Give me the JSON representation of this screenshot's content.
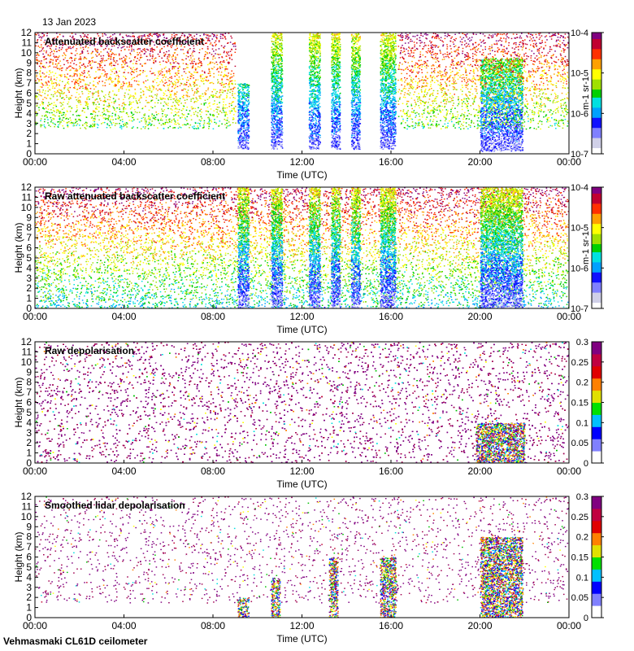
{
  "header": {
    "date": "13 Jan 2023"
  },
  "footer": {
    "site": "Vehmasmaki CL61D ceilometer"
  },
  "chart_data": [
    {
      "type": "heatmap",
      "title": "Attenuated backscatter coefficient",
      "xlabel": "Time (UTC)",
      "ylabel": "Height (km)",
      "xticks": [
        "00:00",
        "04:00",
        "08:00",
        "12:00",
        "16:00",
        "20:00",
        "00:00"
      ],
      "xlim": [
        0,
        24
      ],
      "ylim": [
        0,
        12
      ],
      "yticks": [
        0,
        1,
        2,
        3,
        4,
        5,
        6,
        7,
        8,
        9,
        10,
        11,
        12
      ],
      "colorbar": {
        "scale": "log",
        "range": [
          1e-07,
          0.0001
        ],
        "ticks": [
          "10-7",
          "10-6",
          "10-5",
          "10-4"
        ],
        "unit": "m-1 sr-1"
      },
      "features": [
        {
          "label": "noise aloft",
          "t": [
            0,
            9
          ],
          "h": [
            2.5,
            12
          ]
        },
        {
          "label": "cloud column",
          "t": [
            9.1,
            9.6
          ],
          "h": [
            0.5,
            7
          ]
        },
        {
          "label": "cloud column",
          "t": [
            10.6,
            11.1
          ],
          "h": [
            0.5,
            12
          ]
        },
        {
          "label": "cloud column",
          "t": [
            12.3,
            12.8
          ],
          "h": [
            0.5,
            12
          ]
        },
        {
          "label": "cloud column",
          "t": [
            13.3,
            13.7
          ],
          "h": [
            0.5,
            12
          ]
        },
        {
          "label": "cloud column",
          "t": [
            14.2,
            14.6
          ],
          "h": [
            0.5,
            12
          ]
        },
        {
          "label": "cloud column",
          "t": [
            15.5,
            16.2
          ],
          "h": [
            0.5,
            12
          ]
        },
        {
          "label": "precipitation / cloud",
          "t": [
            20.0,
            21.9
          ],
          "h": [
            0.3,
            9.5
          ]
        },
        {
          "label": "noise aloft",
          "t": [
            16.3,
            24
          ],
          "h": [
            2.5,
            12
          ]
        }
      ]
    },
    {
      "type": "heatmap",
      "title": "Raw attenuated backscatter coefficient",
      "xlabel": "Time (UTC)",
      "ylabel": "Height (km)",
      "xticks": [
        "00:00",
        "04:00",
        "08:00",
        "12:00",
        "16:00",
        "20:00",
        "00:00"
      ],
      "xlim": [
        0,
        24
      ],
      "ylim": [
        0,
        12
      ],
      "yticks": [
        0,
        1,
        2,
        3,
        4,
        5,
        6,
        7,
        8,
        9,
        10,
        11,
        12
      ],
      "colorbar": {
        "scale": "log",
        "range": [
          1e-07,
          0.0001
        ],
        "ticks": [
          "10-7",
          "10-6",
          "10-5",
          "10-4"
        ],
        "unit": "m-1 sr-1"
      },
      "features": [
        {
          "label": "noise field",
          "t": [
            0,
            24
          ],
          "h": [
            0,
            12
          ]
        },
        {
          "label": "cloud column",
          "t": [
            9.1,
            9.6
          ],
          "h": [
            0,
            12
          ]
        },
        {
          "label": "cloud column",
          "t": [
            10.6,
            11.1
          ],
          "h": [
            0,
            12
          ]
        },
        {
          "label": "cloud column",
          "t": [
            12.3,
            12.8
          ],
          "h": [
            0,
            12
          ]
        },
        {
          "label": "cloud column",
          "t": [
            13.3,
            13.7
          ],
          "h": [
            0,
            12
          ]
        },
        {
          "label": "cloud column",
          "t": [
            14.2,
            14.6
          ],
          "h": [
            0,
            12
          ]
        },
        {
          "label": "cloud column",
          "t": [
            15.5,
            16.2
          ],
          "h": [
            0,
            12
          ]
        },
        {
          "label": "precipitation / cloud",
          "t": [
            20.0,
            21.9
          ],
          "h": [
            0,
            12
          ]
        }
      ]
    },
    {
      "type": "heatmap",
      "title": "Raw depolarisation",
      "xlabel": "Time (UTC)",
      "ylabel": "Height (km)",
      "xticks": [
        "00:00",
        "04:00",
        "08:00",
        "12:00",
        "16:00",
        "20:00",
        "00:00"
      ],
      "xlim": [
        0,
        24
      ],
      "ylim": [
        0,
        12
      ],
      "yticks": [
        0,
        1,
        2,
        3,
        4,
        5,
        6,
        7,
        8,
        9,
        10,
        11,
        12
      ],
      "colorbar": {
        "scale": "linear",
        "range": [
          0,
          0.3
        ],
        "ticks": [
          "0",
          "0.05",
          "0.1",
          "0.15",
          "0.2",
          "0.25",
          "0.3"
        ],
        "unit": ""
      },
      "features": [
        {
          "label": "noise field",
          "t": [
            0,
            24
          ],
          "h": [
            0,
            12
          ]
        },
        {
          "label": "low-level signal",
          "t": [
            19.8,
            22
          ],
          "h": [
            0,
            4
          ]
        }
      ]
    },
    {
      "type": "heatmap",
      "title": "Smoothed lidar depolarisation",
      "xlabel": "Time (UTC)",
      "ylabel": "Height (km)",
      "xticks": [
        "00:00",
        "04:00",
        "08:00",
        "12:00",
        "16:00",
        "20:00",
        "00:00"
      ],
      "xlim": [
        0,
        24
      ],
      "ylim": [
        0,
        12
      ],
      "yticks": [
        0,
        1,
        2,
        3,
        4,
        5,
        6,
        7,
        8,
        9,
        10,
        11,
        12
      ],
      "colorbar": {
        "scale": "linear",
        "range": [
          0,
          0.3
        ],
        "ticks": [
          "0",
          "0.05",
          "0.1",
          "0.15",
          "0.2",
          "0.25",
          "0.3"
        ],
        "unit": ""
      },
      "features": [
        {
          "label": "sparse noise",
          "t": [
            0,
            24
          ],
          "h": [
            1.5,
            12
          ]
        },
        {
          "label": "cloud column",
          "t": [
            9.1,
            9.6
          ],
          "h": [
            0,
            2
          ]
        },
        {
          "label": "cloud column",
          "t": [
            10.6,
            11.0
          ],
          "h": [
            0,
            4
          ]
        },
        {
          "label": "cloud column",
          "t": [
            13.2,
            13.6
          ],
          "h": [
            0,
            6
          ]
        },
        {
          "label": "cloud column",
          "t": [
            15.5,
            16.2
          ],
          "h": [
            0,
            6
          ]
        },
        {
          "label": "precipitation / cloud",
          "t": [
            20.0,
            21.9
          ],
          "h": [
            0,
            8
          ]
        }
      ]
    }
  ]
}
